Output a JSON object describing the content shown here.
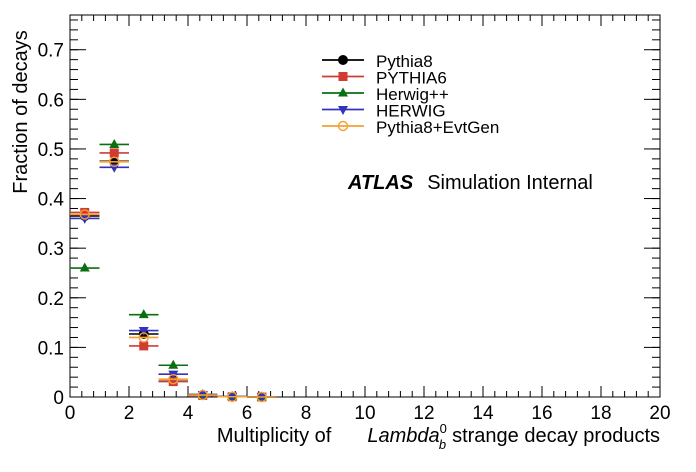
{
  "chart_data": {
    "type": "scatter",
    "ylabel": "Fraction of decays",
    "xlabel_prefix": "Multiplicity of",
    "xlabel_particle": "Lambda",
    "xlabel_sub": "b",
    "xlabel_sup": "0",
    "xlabel_suffix": "strange decay products",
    "xlim": [
      0,
      20
    ],
    "ylim": [
      0,
      0.77
    ],
    "x_ticks": [
      0,
      2,
      4,
      6,
      8,
      10,
      12,
      14,
      16,
      18,
      20
    ],
    "y_ticks": [
      0,
      0.1,
      0.2,
      0.3,
      0.4,
      0.5,
      0.6,
      0.7
    ],
    "x_tick_labels": [
      "0",
      "2",
      "4",
      "6",
      "8",
      "10",
      "12",
      "14",
      "16",
      "18",
      "20"
    ],
    "y_tick_labels": [
      "0",
      "0.1",
      "0.2",
      "0.3",
      "0.4",
      "0.5",
      "0.6",
      "0.7"
    ],
    "grid": false,
    "legend_position": "top-right",
    "atlas_label": "ATLAS",
    "atlas_sublabel": "Simulation Internal",
    "bin_width": 1,
    "series": [
      {
        "name": "Pythia8",
        "color": "#000000",
        "marker": "circle-filled",
        "x": [
          0.5,
          1.5,
          2.5,
          3.5,
          4.5,
          5.5,
          6.5
        ],
        "values": [
          0.365,
          0.475,
          0.127,
          0.035,
          0.004,
          0.0005,
          0.0
        ]
      },
      {
        "name": "PYTHIA6",
        "color": "#d03c32",
        "marker": "square",
        "x": [
          0.5,
          1.5,
          2.5,
          3.5,
          4.5,
          5.5,
          6.5
        ],
        "values": [
          0.372,
          0.492,
          0.103,
          0.031,
          0.003,
          0.0005,
          0.0
        ]
      },
      {
        "name": "Herwig++",
        "color": "#0a6f10",
        "marker": "triangle-up",
        "x": [
          0.5,
          1.5,
          2.5,
          3.5,
          4.5,
          5.5,
          6.5
        ],
        "values": [
          0.26,
          0.509,
          0.166,
          0.064,
          0.005,
          0.001,
          0.0
        ]
      },
      {
        "name": "HERWIG",
        "color": "#3333bb",
        "marker": "triangle-down",
        "x": [
          0.5,
          1.5,
          2.5,
          3.5,
          4.5,
          5.5,
          6.5
        ],
        "values": [
          0.36,
          0.463,
          0.134,
          0.046,
          0.005,
          0.001,
          0.0
        ]
      },
      {
        "name": "Pythia8+EvtGen",
        "color": "#f5a030",
        "marker": "circle-open",
        "x": [
          0.5,
          1.5,
          2.5,
          3.5,
          4.5,
          5.5,
          6.5
        ],
        "values": [
          0.368,
          0.474,
          0.12,
          0.036,
          0.004,
          0.0005,
          0.0
        ]
      }
    ]
  }
}
